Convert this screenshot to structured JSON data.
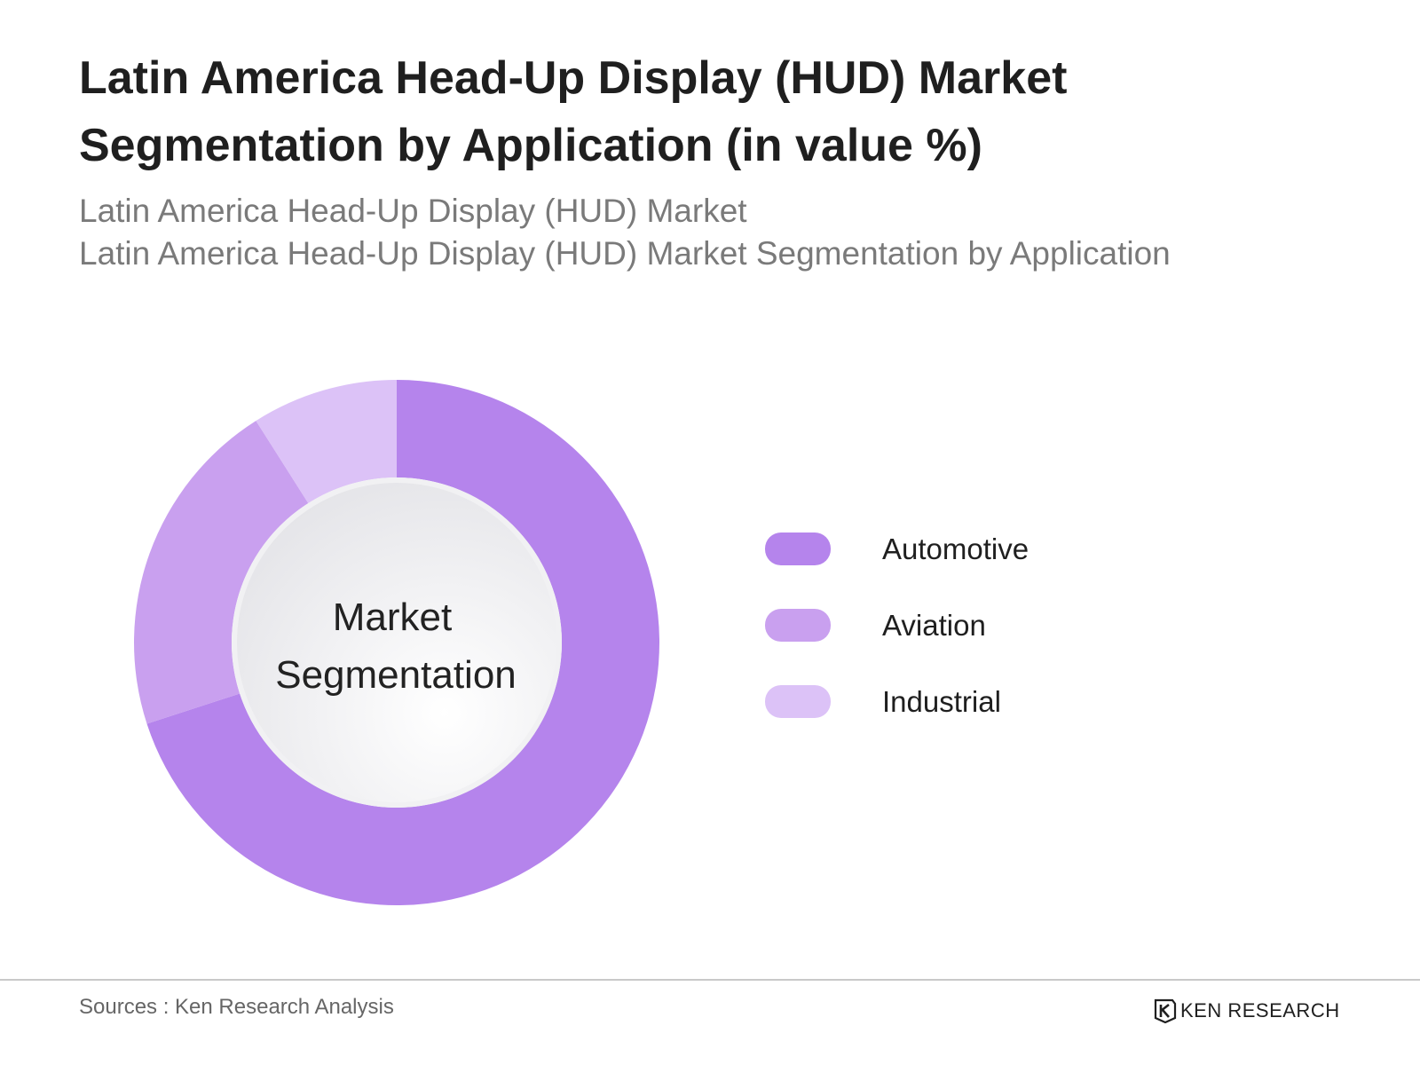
{
  "title": "Latin America Head-Up Display (HUD) Market Segmentation by Application (in value %)",
  "subtitle_lines": [
    "Latin America Head-Up Display (HUD) Market",
    "Latin America Head-Up Display (HUD) Market Segmentation by Application"
  ],
  "center_label": [
    "Market",
    "Segmentation"
  ],
  "source": "Sources : Ken Research Analysis",
  "brand": {
    "name": "KEN RESEARCH",
    "logo_icon": "ken-research-logo-icon"
  },
  "chart_data": {
    "type": "pie",
    "style": "donut",
    "categories": [
      "Automotive",
      "Aviation",
      "Industrial"
    ],
    "values": [
      70,
      21,
      9
    ],
    "unit": "%",
    "colors": [
      "#b584ec",
      "#c9a0ef",
      "#dcc2f7"
    ],
    "legend_position": "right",
    "center_text": "Market Segmentation"
  }
}
